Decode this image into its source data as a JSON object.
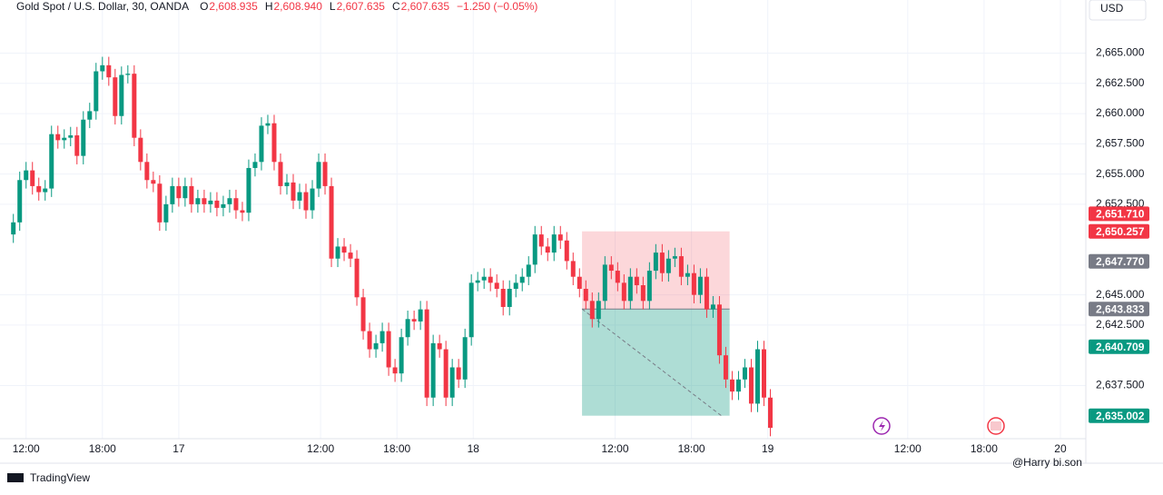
{
  "chart_data": {
    "type": "candlestick",
    "title": "Gold Spot / U.S. Dollar, 30, OANDA",
    "ohlc_header": [
      {
        "key": "O",
        "text": "2,608.935"
      },
      {
        "key": "H",
        "text": "2,608.940"
      },
      {
        "key": "L",
        "text": "2,607.635"
      },
      {
        "key": "C",
        "text": "2,607.635"
      }
    ],
    "change": "−1.250 (−0.05%)",
    "currency": "USD",
    "brand": "TradingView",
    "watermark": "@Harry bi.son",
    "up_color": "#089981",
    "down_color": "#f23645",
    "grid": true,
    "xlim": [
      -2.1,
      168.6
    ],
    "ylim": [
      2633.1,
      2669.4
    ],
    "xticks": [
      {
        "value": 2,
        "label": "12:00"
      },
      {
        "value": 14,
        "label": "18:00"
      },
      {
        "value": 26,
        "label": "17"
      },
      {
        "value": 48.3,
        "label": "12:00"
      },
      {
        "value": 60.3,
        "label": "18:00"
      },
      {
        "value": 72.3,
        "label": "18"
      },
      {
        "value": 94.6,
        "label": "12:00"
      },
      {
        "value": 106.6,
        "label": "18:00"
      },
      {
        "value": 118.6,
        "label": "19"
      },
      {
        "value": 140.6,
        "label": "12:00"
      },
      {
        "value": 152.6,
        "label": "18:00"
      },
      {
        "value": 164.6,
        "label": "20"
      }
    ],
    "yticks": [
      {
        "value": 2665,
        "label": "2,665.000"
      },
      {
        "value": 2662.5,
        "label": "2,662.500"
      },
      {
        "value": 2660,
        "label": "2,660.000"
      },
      {
        "value": 2657.5,
        "label": "2,657.500"
      },
      {
        "value": 2655,
        "label": "2,655.000"
      },
      {
        "value": 2652.5,
        "label": "2,652.500"
      },
      {
        "value": 2645,
        "label": "2,645.000"
      },
      {
        "value": 2642.5,
        "label": "2,642.500"
      },
      {
        "value": 2637.5,
        "label": "2,637.500"
      }
    ],
    "price_badges": [
      {
        "value": 2651.71,
        "label": "2,651.710",
        "color": "#f23645"
      },
      {
        "value": 2650.257,
        "label": "2,650.257",
        "color": "#f23645"
      },
      {
        "value": 2647.77,
        "label": "2,647.770",
        "color": "#787b86"
      },
      {
        "value": 2643.833,
        "label": "2,643.833",
        "color": "#787b86"
      },
      {
        "value": 2640.709,
        "label": "2,640.709",
        "color": "#089981"
      },
      {
        "value": 2635.002,
        "label": "2,635.002",
        "color": "#089981"
      }
    ],
    "position": {
      "x_start": 89.4,
      "x_end": 112.6,
      "stop": 2650.257,
      "entry": 2643.833,
      "target": 2635.002,
      "exit_x": 111.3
    },
    "open": [
      2650.0,
      2651.0,
      2654.5,
      2655.3,
      2654.0,
      2653.5,
      2653.8,
      2658.3,
      2657.8,
      2658.0,
      2658.2,
      2656.5,
      2659.5,
      2660.2,
      2663.5,
      2664.0,
      2663.0,
      2659.8,
      2663.2,
      2663.3,
      2658.0,
      2656.0,
      2654.5,
      2654.2,
      2651.0,
      2652.5,
      2654.0,
      2653.0,
      2654.0,
      2652.5,
      2653.0,
      2652.5,
      2652.8,
      2652.2,
      2652.5,
      2653.0,
      2652.0,
      2651.8,
      2655.5,
      2656.0,
      2659.0,
      2659.2,
      2656.0,
      2654.0,
      2654.3,
      2652.8,
      2653.5,
      2652.0,
      2653.8,
      2656.0,
      2654.0,
      2648.0,
      2649.0,
      2648.5,
      2648.0,
      2644.8,
      2642.0,
      2640.5,
      2641.0,
      2642.0,
      2639.0,
      2638.5,
      2641.5,
      2643.0,
      2642.8,
      2643.8,
      2636.5,
      2641.0,
      2640.5,
      2636.5,
      2639.0,
      2638.0,
      2641.5,
      2646.0,
      2646.2,
      2646.5,
      2646.0,
      2645.5,
      2644.0,
      2645.5,
      2646.0,
      2646.5,
      2647.5,
      2650.0,
      2649.0,
      2648.5,
      2650.0,
      2649.5,
      2647.8,
      2646.5,
      2645.5,
      2644.5,
      2643.0,
      2644.5,
      2647.5,
      2647.0,
      2646.0,
      2644.5,
      2646.5,
      2645.8,
      2644.5,
      2647.0,
      2648.5,
      2646.8,
      2648.0,
      2648.2,
      2646.5,
      2646.8,
      2645.0,
      2646.5,
      2643.8,
      2644.2,
      2640.0,
      2638.0,
      2637.0,
      2638.0,
      2639.0,
      2636.0,
      2640.5,
      2636.5
    ],
    "high": [
      2651.7,
      2655.2,
      2656.0,
      2656.0,
      2654.7,
      2654.5,
      2659.0,
      2659.0,
      2658.7,
      2658.9,
      2658.9,
      2660.2,
      2660.9,
      2664.2,
      2664.7,
      2664.7,
      2663.7,
      2663.9,
      2664.0,
      2664.0,
      2658.7,
      2656.7,
      2655.2,
      2654.9,
      2653.2,
      2654.7,
      2654.7,
      2654.7,
      2654.7,
      2653.7,
      2653.7,
      2653.5,
      2653.5,
      2653.2,
      2653.7,
      2653.7,
      2652.7,
      2656.2,
      2656.7,
      2659.7,
      2659.9,
      2659.9,
      2656.7,
      2655.0,
      2655.0,
      2654.2,
      2654.2,
      2654.5,
      2656.7,
      2656.7,
      2654.7,
      2649.7,
      2649.7,
      2649.2,
      2648.7,
      2645.5,
      2642.7,
      2641.7,
      2642.7,
      2642.7,
      2639.7,
      2642.2,
      2643.7,
      2643.7,
      2644.5,
      2644.5,
      2641.7,
      2641.7,
      2641.2,
      2639.7,
      2639.7,
      2642.2,
      2646.7,
      2646.9,
      2647.2,
      2647.2,
      2646.7,
      2646.2,
      2646.2,
      2646.7,
      2647.2,
      2648.2,
      2650.7,
      2650.7,
      2649.7,
      2650.7,
      2650.7,
      2650.2,
      2648.5,
      2647.2,
      2646.2,
      2645.2,
      2645.2,
      2648.2,
      2648.2,
      2647.7,
      2646.7,
      2647.2,
      2647.2,
      2646.5,
      2647.7,
      2649.2,
      2649.2,
      2648.7,
      2648.9,
      2648.9,
      2647.5,
      2647.5,
      2647.2,
      2647.2,
      2644.9,
      2644.9,
      2640.7,
      2638.7,
      2638.7,
      2639.7,
      2639.7,
      2641.2,
      2641.2,
      2637.2
    ],
    "low": [
      2649.3,
      2650.3,
      2653.8,
      2653.3,
      2652.8,
      2652.8,
      2653.1,
      2657.1,
      2657.1,
      2657.3,
      2655.8,
      2655.8,
      2658.8,
      2659.5,
      2662.8,
      2662.3,
      2659.1,
      2659.1,
      2662.5,
      2657.3,
      2655.3,
      2653.8,
      2653.5,
      2650.3,
      2650.3,
      2651.8,
      2652.3,
      2652.3,
      2651.8,
      2651.8,
      2651.8,
      2651.8,
      2651.5,
      2651.5,
      2651.8,
      2651.3,
      2651.1,
      2651.1,
      2654.8,
      2655.3,
      2658.3,
      2655.3,
      2653.3,
      2653.3,
      2652.1,
      2652.1,
      2651.3,
      2651.3,
      2653.1,
      2653.3,
      2647.3,
      2647.3,
      2647.8,
      2647.3,
      2644.1,
      2641.3,
      2639.8,
      2639.8,
      2640.3,
      2638.3,
      2637.8,
      2637.8,
      2640.8,
      2642.1,
      2642.1,
      2635.8,
      2635.8,
      2639.8,
      2635.8,
      2635.8,
      2637.3,
      2637.3,
      2640.8,
      2645.3,
      2645.5,
      2645.3,
      2644.8,
      2643.3,
      2643.3,
      2644.8,
      2645.3,
      2645.8,
      2646.8,
      2648.3,
      2647.8,
      2647.8,
      2648.8,
      2647.1,
      2645.8,
      2644.8,
      2643.8,
      2642.3,
      2642.3,
      2643.8,
      2646.3,
      2645.3,
      2643.8,
      2643.8,
      2645.1,
      2643.8,
      2643.8,
      2646.3,
      2646.1,
      2646.1,
      2647.3,
      2645.8,
      2645.8,
      2644.3,
      2644.3,
      2643.1,
      2643.1,
      2639.3,
      2637.3,
      2636.3,
      2636.3,
      2637.3,
      2635.3,
      2635.3,
      2635.8,
      2633.3
    ],
    "close": [
      2651.0,
      2654.5,
      2655.3,
      2654.0,
      2653.5,
      2653.8,
      2658.3,
      2657.8,
      2658.0,
      2658.2,
      2656.5,
      2659.5,
      2660.2,
      2663.5,
      2664.0,
      2663.0,
      2659.8,
      2663.2,
      2663.3,
      2658.0,
      2656.0,
      2654.5,
      2654.2,
      2651.0,
      2652.5,
      2654.0,
      2653.0,
      2654.0,
      2652.5,
      2653.0,
      2652.5,
      2652.8,
      2652.2,
      2652.5,
      2653.0,
      2652.0,
      2651.8,
      2655.5,
      2656.0,
      2659.0,
      2659.2,
      2656.0,
      2654.0,
      2654.3,
      2652.8,
      2653.5,
      2652.0,
      2653.8,
      2656.0,
      2654.0,
      2648.0,
      2649.0,
      2648.5,
      2648.0,
      2644.8,
      2642.0,
      2640.5,
      2641.0,
      2642.0,
      2639.0,
      2638.5,
      2641.5,
      2643.0,
      2642.8,
      2643.8,
      2636.5,
      2641.0,
      2640.5,
      2636.5,
      2639.0,
      2638.0,
      2641.5,
      2646.0,
      2646.2,
      2646.5,
      2646.0,
      2645.5,
      2644.0,
      2645.5,
      2646.0,
      2646.5,
      2647.5,
      2650.0,
      2649.0,
      2648.5,
      2650.0,
      2649.5,
      2647.8,
      2646.5,
      2645.5,
      2644.5,
      2643.0,
      2644.5,
      2647.5,
      2647.0,
      2646.0,
      2644.5,
      2646.5,
      2645.8,
      2644.5,
      2647.0,
      2648.5,
      2646.8,
      2648.0,
      2648.2,
      2646.5,
      2646.8,
      2645.0,
      2646.5,
      2643.8,
      2644.2,
      2640.0,
      2638.0,
      2637.0,
      2638.0,
      2639.0,
      2636.0,
      2640.5,
      2636.5,
      2634.0
    ]
  }
}
